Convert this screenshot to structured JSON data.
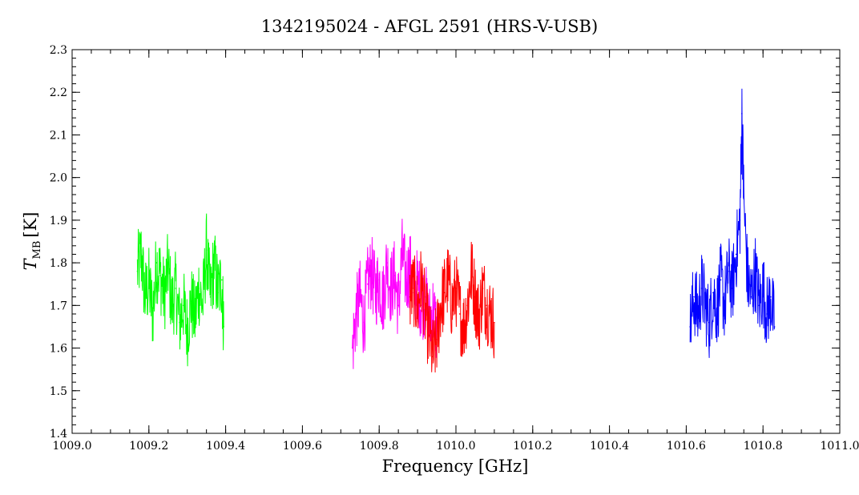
{
  "chart_data": {
    "type": "line",
    "title": "1342195024 - AFGL 2591 (HRS-V-USB)",
    "xlabel": "Frequency [GHz]",
    "ylabel_main": "T",
    "ylabel_sub": "MB",
    "ylabel_unit": "[K]",
    "xlim": [
      1009.0,
      1011.0
    ],
    "ylim": [
      1.4,
      2.3
    ],
    "xticks": [
      "1009.0",
      "1009.2",
      "1009.4",
      "1009.6",
      "1009.8",
      "1010.0",
      "1010.2",
      "1010.4",
      "1010.6",
      "1010.8",
      "1011.0"
    ],
    "yticks": [
      "1.4",
      "1.5",
      "1.6",
      "1.7",
      "1.8",
      "1.9",
      "2.0",
      "2.1",
      "2.2",
      "2.3"
    ],
    "grid": false,
    "series": [
      {
        "color": "#00ff00",
        "x": [
          1009.17,
          1009.18,
          1009.19,
          1009.2,
          1009.21,
          1009.22,
          1009.23,
          1009.24,
          1009.25,
          1009.26,
          1009.27,
          1009.28,
          1009.29,
          1009.3,
          1009.31,
          1009.32,
          1009.33,
          1009.34,
          1009.35,
          1009.36,
          1009.37,
          1009.38,
          1009.39,
          1009.395
        ],
        "y": [
          1.78,
          1.82,
          1.72,
          1.75,
          1.68,
          1.8,
          1.77,
          1.72,
          1.79,
          1.7,
          1.74,
          1.66,
          1.7,
          1.64,
          1.71,
          1.67,
          1.74,
          1.7,
          1.83,
          1.72,
          1.8,
          1.73,
          1.76,
          1.65
        ]
      },
      {
        "color": "#ff00ff",
        "x": [
          1009.73,
          1009.74,
          1009.75,
          1009.76,
          1009.77,
          1009.78,
          1009.79,
          1009.8,
          1009.81,
          1009.82,
          1009.83,
          1009.84,
          1009.85,
          1009.86,
          1009.87,
          1009.88,
          1009.89,
          1009.9,
          1009.91,
          1009.92,
          1009.93,
          1009.94,
          1009.95
        ],
        "y": [
          1.6,
          1.68,
          1.72,
          1.66,
          1.75,
          1.78,
          1.73,
          1.76,
          1.71,
          1.8,
          1.74,
          1.77,
          1.7,
          1.82,
          1.76,
          1.79,
          1.73,
          1.75,
          1.7,
          1.72,
          1.66,
          1.69,
          1.64
        ]
      },
      {
        "color": "#ff0000",
        "x": [
          1009.88,
          1009.89,
          1009.9,
          1009.91,
          1009.92,
          1009.93,
          1009.94,
          1009.95,
          1009.96,
          1009.97,
          1009.98,
          1009.99,
          1010.0,
          1010.01,
          1010.02,
          1010.03,
          1010.04,
          1010.05,
          1010.06,
          1010.07,
          1010.08,
          1010.09,
          1010.1
        ],
        "y": [
          1.72,
          1.74,
          1.69,
          1.76,
          1.68,
          1.63,
          1.58,
          1.62,
          1.7,
          1.73,
          1.76,
          1.7,
          1.74,
          1.68,
          1.65,
          1.7,
          1.78,
          1.72,
          1.67,
          1.74,
          1.7,
          1.68,
          1.66
        ]
      },
      {
        "color": "#0000ff",
        "x": [
          1010.61,
          1010.62,
          1010.63,
          1010.64,
          1010.65,
          1010.66,
          1010.67,
          1010.68,
          1010.69,
          1010.7,
          1010.71,
          1010.72,
          1010.73,
          1010.74,
          1010.745,
          1010.75,
          1010.76,
          1010.77,
          1010.78,
          1010.79,
          1010.8,
          1010.81,
          1010.82,
          1010.83
        ],
        "y": [
          1.65,
          1.72,
          1.68,
          1.74,
          1.7,
          1.66,
          1.73,
          1.69,
          1.76,
          1.7,
          1.78,
          1.74,
          1.82,
          1.9,
          2.15,
          1.95,
          1.76,
          1.72,
          1.78,
          1.7,
          1.74,
          1.68,
          1.72,
          1.65
        ]
      }
    ]
  }
}
